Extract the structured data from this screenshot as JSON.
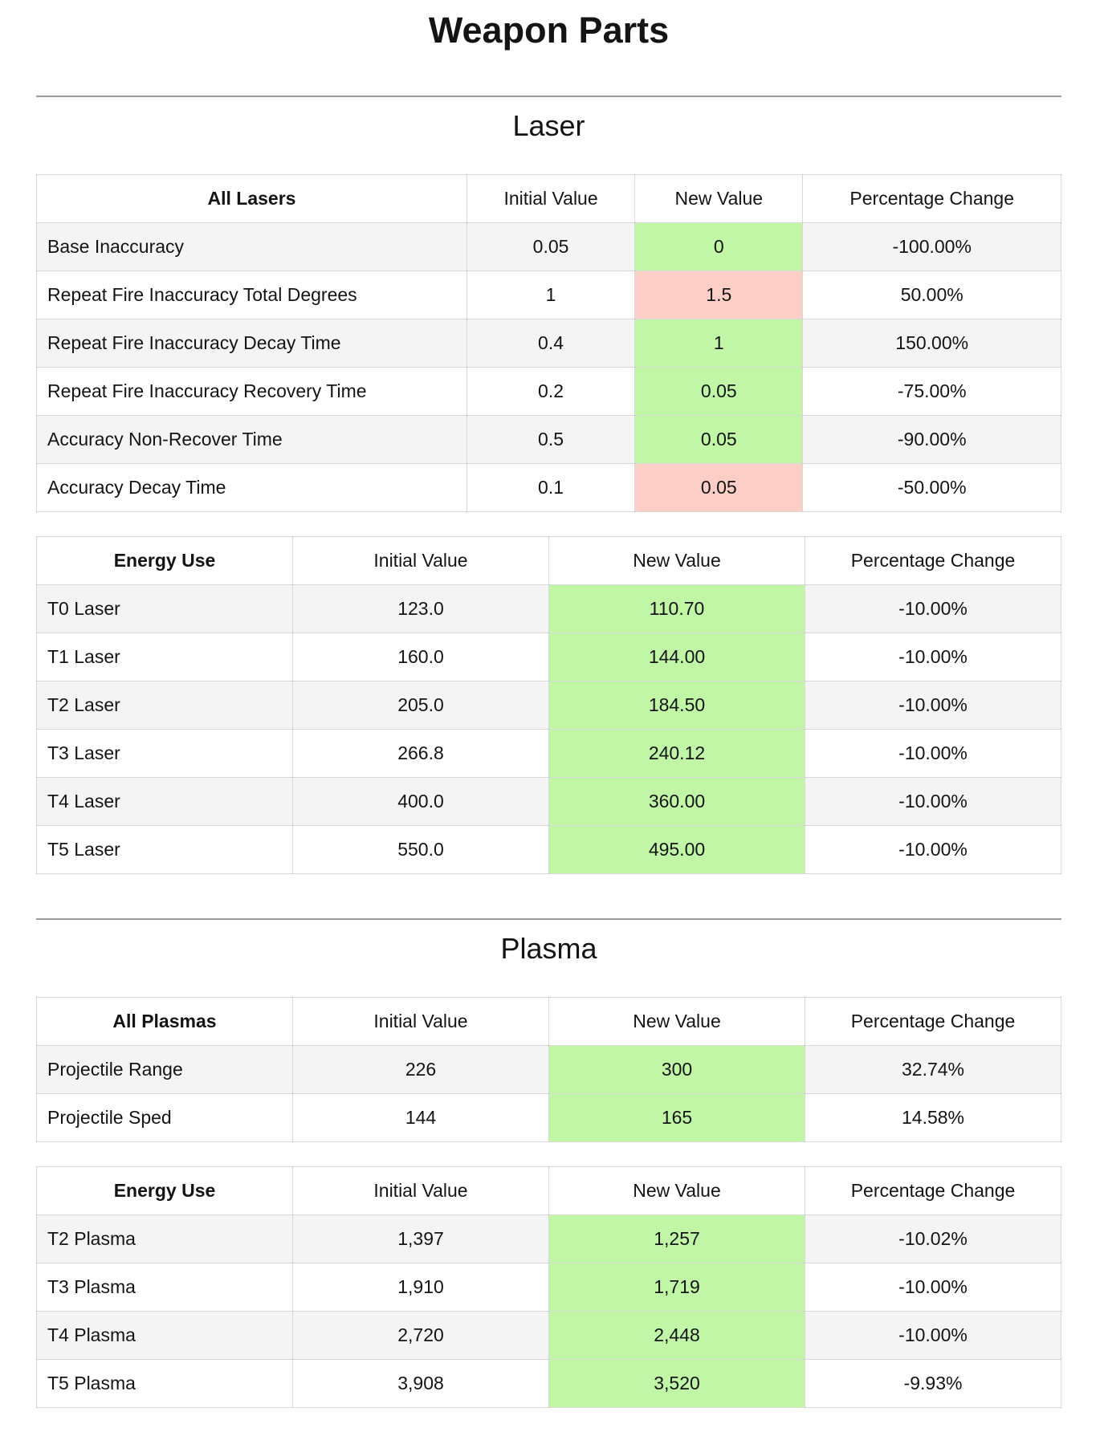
{
  "page_title": "Weapon Parts",
  "colors": {
    "highlight_green": "#c0f6a6",
    "highlight_red": "#fdcec6",
    "row_stripe": "#f4f4f4",
    "divider_gray": "#9b9b9b"
  },
  "sections": [
    {
      "heading": "Laser",
      "tables": [
        {
          "style": "wide",
          "header": [
            "All Lasers",
            "Initial Value",
            "New Value",
            "Percentage Change"
          ],
          "rows": [
            {
              "label": "Base Inaccuracy",
              "initial": "0.05",
              "new": "0",
              "highlight": "green",
              "pct": "-100.00%"
            },
            {
              "label": "Repeat Fire Inaccuracy Total Degrees",
              "initial": "1",
              "new": "1.5",
              "highlight": "red",
              "pct": "50.00%"
            },
            {
              "label": "Repeat Fire Inaccuracy Decay Time",
              "initial": "0.4",
              "new": "1",
              "highlight": "green",
              "pct": "150.00%"
            },
            {
              "label": "Repeat Fire Inaccuracy Recovery Time",
              "initial": "0.2",
              "new": "0.05",
              "highlight": "green",
              "pct": "-75.00%"
            },
            {
              "label": "Accuracy Non-Recover Time",
              "initial": "0.5",
              "new": "0.05",
              "highlight": "green",
              "pct": "-90.00%"
            },
            {
              "label": "Accuracy Decay Time",
              "initial": "0.1",
              "new": "0.05",
              "highlight": "red",
              "pct": "-50.00%"
            }
          ]
        },
        {
          "style": "equal",
          "header": [
            "Energy Use",
            "Initial Value",
            "New Value",
            "Percentage Change"
          ],
          "rows": [
            {
              "label": "T0 Laser",
              "initial": "123.0",
              "new": "110.70",
              "highlight": "green",
              "pct": "-10.00%"
            },
            {
              "label": "T1 Laser",
              "initial": "160.0",
              "new": "144.00",
              "highlight": "green",
              "pct": "-10.00%"
            },
            {
              "label": "T2 Laser",
              "initial": "205.0",
              "new": "184.50",
              "highlight": "green",
              "pct": "-10.00%"
            },
            {
              "label": "T3 Laser",
              "initial": "266.8",
              "new": "240.12",
              "highlight": "green",
              "pct": "-10.00%"
            },
            {
              "label": "T4 Laser",
              "initial": "400.0",
              "new": "360.00",
              "highlight": "green",
              "pct": "-10.00%"
            },
            {
              "label": "T5 Laser",
              "initial": "550.0",
              "new": "495.00",
              "highlight": "green",
              "pct": "-10.00%"
            }
          ]
        }
      ]
    },
    {
      "heading": "Plasma",
      "tables": [
        {
          "style": "equal",
          "header": [
            "All Plasmas",
            "Initial Value",
            "New Value",
            "Percentage Change"
          ],
          "rows": [
            {
              "label": "Projectile Range",
              "initial": "226",
              "new": "300",
              "highlight": "green",
              "pct": "32.74%"
            },
            {
              "label": "Projectile Sped",
              "initial": "144",
              "new": "165",
              "highlight": "green",
              "pct": "14.58%"
            }
          ]
        },
        {
          "style": "equal",
          "header": [
            "Energy Use",
            "Initial Value",
            "New Value",
            "Percentage Change"
          ],
          "rows": [
            {
              "label": "T2 Plasma",
              "initial": "1,397",
              "new": "1,257",
              "highlight": "green",
              "pct": "-10.02%"
            },
            {
              "label": "T3 Plasma",
              "initial": "1,910",
              "new": "1,719",
              "highlight": "green",
              "pct": "-10.00%"
            },
            {
              "label": "T4 Plasma",
              "initial": "2,720",
              "new": "2,448",
              "highlight": "green",
              "pct": "-10.00%"
            },
            {
              "label": "T5 Plasma",
              "initial": "3,908",
              "new": "3,520",
              "highlight": "green",
              "pct": "-9.93%"
            }
          ]
        }
      ]
    }
  ]
}
